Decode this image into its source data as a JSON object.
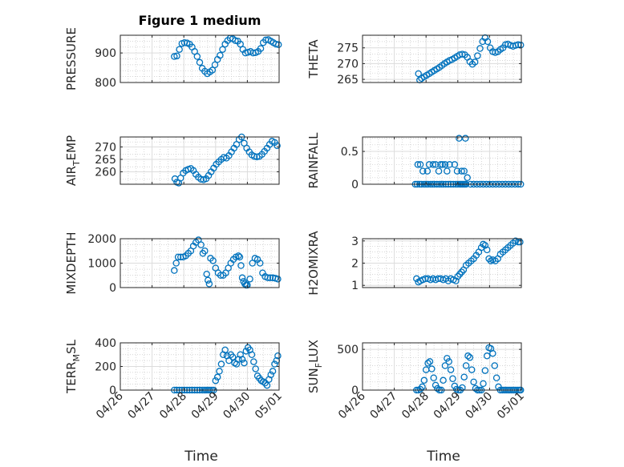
{
  "chart_data": [
    {
      "type": "scatter",
      "title": "Figure 1 medium",
      "ylabel": "PRESSURE",
      "ylim": [
        800,
        960
      ],
      "yticks": [
        800,
        900
      ],
      "yminor": [
        820,
        840,
        860,
        880,
        920,
        940
      ],
      "xlim": [
        "04/26",
        "05/01"
      ],
      "xticks": [
        "04/26",
        "04/27",
        "04/28",
        "04/29",
        "04/30",
        "05/01"
      ],
      "show_xtick_labels": false,
      "grid": "on",
      "marker": "circle",
      "color": "#0072BD",
      "x": [
        1.7,
        1.78,
        1.86,
        1.94,
        2.02,
        2.1,
        2.18,
        2.26,
        2.34,
        2.42,
        2.5,
        2.58,
        2.66,
        2.74,
        2.82,
        2.9,
        2.98,
        3.06,
        3.14,
        3.22,
        3.3,
        3.38,
        3.46,
        3.54,
        3.62,
        3.7,
        3.78,
        3.86,
        3.94,
        4.02,
        4.1,
        4.18,
        4.26,
        4.34,
        4.42,
        4.5,
        4.58,
        4.66,
        4.74,
        4.82,
        4.9,
        4.98
      ],
      "y": [
        888,
        890,
        912,
        932,
        935,
        934,
        930,
        920,
        905,
        888,
        868,
        848,
        838,
        830,
        836,
        842,
        860,
        878,
        892,
        912,
        930,
        942,
        950,
        948,
        942,
        940,
        930,
        912,
        900,
        902,
        905,
        900,
        901,
        905,
        915,
        935,
        944,
        945,
        940,
        935,
        930,
        928
      ]
    },
    {
      "type": "scatter",
      "ylabel": "THETA",
      "ylim": [
        264,
        279
      ],
      "yticks": [
        265,
        270,
        275
      ],
      "yminor": [
        267,
        269,
        271,
        273,
        277
      ],
      "xlim": [
        "04/26",
        "05/01"
      ],
      "xticks": [
        "04/26",
        "04/27",
        "04/28",
        "04/29",
        "04/30",
        "05/01"
      ],
      "show_xtick_labels": false,
      "grid": "on",
      "marker": "circle",
      "color": "#0072BD",
      "x": [
        1.76,
        1.8,
        1.86,
        1.94,
        2.02,
        2.1,
        2.18,
        2.26,
        2.34,
        2.42,
        2.5,
        2.58,
        2.66,
        2.74,
        2.82,
        2.9,
        2.98,
        3.06,
        3.14,
        3.22,
        3.3,
        3.38,
        3.46,
        3.54,
        3.62,
        3.7,
        3.78,
        3.86,
        3.94,
        4.02,
        4.1,
        4.18,
        4.26,
        4.34,
        4.42,
        4.5,
        4.58,
        4.66,
        4.74,
        4.82,
        4.9,
        4.98
      ],
      "y": [
        266.8,
        264.8,
        265.3,
        265.8,
        266.3,
        266.8,
        267.3,
        267.8,
        268.3,
        268.8,
        269.4,
        270.0,
        270.5,
        271.0,
        271.3,
        271.8,
        272.3,
        272.8,
        273.0,
        272.8,
        272.0,
        270.6,
        269.8,
        270.5,
        272.5,
        274.8,
        277.0,
        278.2,
        277.0,
        275.0,
        273.8,
        273.5,
        273.8,
        274.5,
        275.0,
        276.0,
        276.2,
        275.8,
        275.5,
        275.8,
        276.0,
        275.9
      ]
    },
    {
      "type": "scatter",
      "ylabel": "AIR_TEMP",
      "ylabel_parts": {
        "base": "AIR",
        "sub": "T",
        "rest": "EMP"
      },
      "ylim": [
        255,
        274
      ],
      "yticks": [
        260,
        265,
        270
      ],
      "yminor": [
        257,
        262,
        267,
        272
      ],
      "xlim": [
        "04/26",
        "05/01"
      ],
      "xticks": [
        "04/26",
        "04/27",
        "04/28",
        "04/29",
        "04/30",
        "05/01"
      ],
      "show_xtick_labels": false,
      "grid": "on",
      "marker": "circle",
      "color": "#0072BD",
      "x": [
        1.72,
        1.78,
        1.84,
        1.9,
        1.98,
        2.06,
        2.14,
        2.22,
        2.3,
        2.38,
        2.46,
        2.54,
        2.62,
        2.7,
        2.78,
        2.86,
        2.94,
        3.02,
        3.1,
        3.18,
        3.26,
        3.34,
        3.42,
        3.5,
        3.58,
        3.66,
        3.74,
        3.82,
        3.9,
        3.98,
        4.06,
        4.14,
        4.22,
        4.3,
        4.38,
        4.46,
        4.54,
        4.62,
        4.7,
        4.78,
        4.86,
        4.94
      ],
      "y": [
        257.2,
        255.8,
        255.5,
        257.5,
        259.5,
        260.5,
        261.0,
        261.3,
        260.5,
        259.0,
        257.8,
        257.0,
        256.8,
        257.2,
        258.5,
        260.0,
        261.5,
        263.0,
        264.0,
        265.0,
        265.8,
        265.5,
        266.5,
        268.0,
        269.5,
        271.0,
        273.0,
        274.0,
        271.5,
        269.5,
        268.0,
        266.8,
        266.2,
        266.0,
        266.2,
        267.0,
        268.2,
        269.5,
        271.0,
        272.3,
        271.8,
        270.5
      ]
    },
    {
      "type": "scatter",
      "ylabel": "RAINFALL",
      "ylim": [
        0,
        0.72
      ],
      "yticks": [
        0,
        0.5
      ],
      "yminor": [
        0.1,
        0.2,
        0.3,
        0.4,
        0.6,
        0.7
      ],
      "xlim": [
        "04/26",
        "05/01"
      ],
      "xticks": [
        "04/26",
        "04/27",
        "04/28",
        "04/29",
        "04/30",
        "05/01"
      ],
      "show_xtick_labels": false,
      "grid": "on",
      "marker": "circle",
      "color": "#0072BD",
      "x": [
        1.66,
        1.72,
        1.8,
        1.86,
        1.94,
        2.0,
        2.06,
        2.14,
        2.2,
        2.26,
        2.34,
        2.42,
        2.48,
        2.54,
        2.62,
        2.7,
        2.78,
        2.86,
        2.94,
        3.0,
        3.06,
        3.1,
        3.14,
        3.18,
        3.22,
        3.26,
        1.74,
        1.82,
        1.9,
        2.04,
        2.1,
        2.22,
        2.3,
        2.4,
        2.46,
        2.52,
        2.6,
        2.66,
        2.74,
        2.9,
        2.98,
        3.04,
        3.12,
        3.2,
        3.24,
        3.3,
        3.4,
        3.5,
        3.6,
        3.7,
        3.8,
        3.9,
        4.0,
        4.1,
        4.2,
        4.3,
        4.4,
        4.5,
        4.6,
        4.7,
        4.8,
        4.9,
        4.98
      ],
      "y": [
        0,
        0,
        0,
        0,
        0,
        0,
        0,
        0,
        0,
        0,
        0,
        0,
        0,
        0,
        0,
        0,
        0,
        0,
        0,
        0,
        0,
        0,
        0,
        0,
        0,
        0,
        0.3,
        0.3,
        0.2,
        0.2,
        0.3,
        0.3,
        0.3,
        0.2,
        0.3,
        0.3,
        0.3,
        0.2,
        0.3,
        0.3,
        0.2,
        0.7,
        0.2,
        0.2,
        0.7,
        0.1,
        0,
        0,
        0,
        0,
        0,
        0,
        0,
        0,
        0,
        0,
        0,
        0,
        0,
        0,
        0,
        0,
        0
      ]
    },
    {
      "type": "scatter",
      "ylabel": "MIXDEPTH",
      "ylim": [
        0,
        2000
      ],
      "yticks": [
        0,
        1000,
        2000
      ],
      "yminor": [
        250,
        500,
        750,
        1250,
        1500,
        1750
      ],
      "xlim": [
        "04/26",
        "05/01"
      ],
      "xticks": [
        "04/26",
        "04/27",
        "04/28",
        "04/29",
        "04/30",
        "05/01"
      ],
      "show_xtick_labels": false,
      "grid": "on",
      "marker": "circle",
      "color": "#0072BD",
      "x": [
        1.7,
        1.76,
        1.82,
        1.9,
        1.98,
        2.06,
        2.14,
        2.22,
        2.3,
        2.38,
        2.46,
        2.54,
        2.6,
        2.66,
        2.72,
        2.76,
        2.8,
        2.84,
        2.92,
        3.0,
        3.08,
        3.16,
        3.24,
        3.32,
        3.4,
        3.48,
        3.56,
        3.64,
        3.72,
        3.76,
        3.8,
        3.84,
        3.88,
        3.92,
        3.96,
        4.0,
        4.08,
        4.16,
        4.24,
        4.32,
        4.4,
        4.48,
        4.56,
        4.64,
        4.72,
        4.8,
        4.88,
        4.96
      ],
      "y": [
        700,
        1000,
        1250,
        1250,
        1250,
        1300,
        1400,
        1500,
        1700,
        1850,
        1950,
        1750,
        1400,
        1500,
        550,
        300,
        150,
        1200,
        1100,
        800,
        600,
        500,
        500,
        600,
        800,
        1000,
        1150,
        1250,
        1300,
        1250,
        900,
        400,
        250,
        150,
        100,
        100,
        350,
        1000,
        1200,
        1150,
        1000,
        600,
        450,
        400,
        400,
        400,
        380,
        350
      ]
    },
    {
      "type": "scatter",
      "ylabel": "H2OMIXRA",
      "ylim": [
        0.9,
        3.1
      ],
      "yticks": [
        1,
        2,
        3
      ],
      "yminor": [
        1.25,
        1.5,
        1.75,
        2.25,
        2.5,
        2.75
      ],
      "xlim": [
        "04/26",
        "05/01"
      ],
      "xticks": [
        "04/26",
        "04/27",
        "04/28",
        "04/29",
        "04/30",
        "05/01"
      ],
      "show_xtick_labels": false,
      "grid": "on",
      "marker": "circle",
      "color": "#0072BD",
      "x": [
        1.7,
        1.76,
        1.82,
        1.9,
        1.98,
        2.06,
        2.14,
        2.22,
        2.3,
        2.38,
        2.46,
        2.54,
        2.62,
        2.7,
        2.78,
        2.86,
        2.94,
        3.0,
        3.06,
        3.12,
        3.18,
        3.26,
        3.34,
        3.42,
        3.5,
        3.58,
        3.66,
        3.74,
        3.8,
        3.86,
        3.92,
        3.98,
        4.04,
        4.1,
        4.18,
        4.26,
        4.34,
        4.42,
        4.5,
        4.58,
        4.66,
        4.74,
        4.82,
        4.9,
        4.96
      ],
      "y": [
        1.3,
        1.15,
        1.2,
        1.25,
        1.3,
        1.3,
        1.25,
        1.3,
        1.25,
        1.3,
        1.3,
        1.25,
        1.3,
        1.2,
        1.3,
        1.25,
        1.2,
        1.4,
        1.5,
        1.6,
        1.7,
        1.9,
        2.0,
        2.1,
        2.2,
        2.35,
        2.5,
        2.7,
        2.85,
        2.8,
        2.6,
        2.2,
        2.1,
        2.15,
        2.1,
        2.2,
        2.4,
        2.5,
        2.6,
        2.7,
        2.8,
        2.9,
        3.0,
        2.95,
        2.95
      ]
    },
    {
      "type": "scatter",
      "ylabel": "TERR_MSL",
      "ylabel_parts": {
        "base": "TERR",
        "sub": "M",
        "rest": "SL"
      },
      "ylim": [
        0,
        400
      ],
      "yticks": [
        0,
        200,
        400
      ],
      "yminor": [
        50,
        100,
        150,
        250,
        300,
        350
      ],
      "xlim": [
        "04/26",
        "05/01"
      ],
      "xticks": [
        "04/26",
        "04/27",
        "04/28",
        "04/29",
        "04/30",
        "05/01"
      ],
      "xlabel": "Time",
      "show_xtick_labels": true,
      "grid": "on",
      "marker": "circle",
      "color": "#0072BD",
      "x": [
        1.7,
        1.78,
        1.86,
        1.94,
        2.02,
        2.1,
        2.18,
        2.26,
        2.34,
        2.42,
        2.5,
        2.58,
        2.64,
        2.7,
        2.76,
        2.82,
        2.88,
        2.94,
        3.0,
        3.06,
        3.12,
        3.18,
        3.24,
        3.3,
        3.36,
        3.42,
        3.48,
        3.54,
        3.6,
        3.66,
        3.72,
        3.78,
        3.84,
        3.9,
        3.96,
        4.02,
        4.08,
        4.14,
        4.2,
        4.26,
        4.32,
        4.38,
        4.44,
        4.5,
        4.56,
        4.62,
        4.68,
        4.74,
        4.8,
        4.86,
        4.92,
        4.96
      ],
      "y": [
        0,
        0,
        0,
        0,
        0,
        0,
        0,
        0,
        0,
        0,
        0,
        0,
        0,
        0,
        0,
        0,
        0,
        0,
        80,
        110,
        160,
        220,
        300,
        340,
        290,
        250,
        300,
        280,
        230,
        220,
        260,
        300,
        260,
        230,
        330,
        360,
        340,
        300,
        240,
        180,
        120,
        100,
        80,
        70,
        60,
        40,
        90,
        130,
        160,
        220,
        250,
        290
      ]
    },
    {
      "type": "scatter",
      "ylabel": "SUN_FLUX",
      "ylabel_parts": {
        "base": "SUN",
        "sub": "F",
        "rest": "LUX"
      },
      "ylim": [
        0,
        580
      ],
      "yticks": [
        0,
        500
      ],
      "yminor": [
        100,
        200,
        300,
        400
      ],
      "xlim": [
        "04/26",
        "05/01"
      ],
      "xticks": [
        "04/26",
        "04/27",
        "04/28",
        "04/29",
        "04/30",
        "05/01"
      ],
      "xlabel": "Time",
      "show_xtick_labels": true,
      "grid": "on",
      "marker": "circle",
      "color": "#0072BD",
      "x": [
        1.7,
        1.76,
        1.82,
        1.88,
        1.94,
        2.0,
        2.06,
        2.12,
        2.18,
        2.24,
        2.3,
        2.36,
        2.42,
        2.48,
        2.54,
        2.6,
        2.66,
        2.72,
        2.78,
        2.84,
        2.9,
        2.96,
        3.02,
        3.08,
        3.14,
        3.2,
        3.26,
        3.32,
        3.38,
        3.44,
        3.5,
        3.56,
        3.62,
        3.68,
        3.74,
        3.8,
        3.86,
        3.92,
        3.98,
        4.04,
        4.1,
        4.16,
        4.22,
        4.28,
        4.34,
        4.4,
        4.46,
        4.52,
        4.58,
        4.64,
        4.7,
        4.76,
        4.82,
        4.88,
        4.94,
        4.98
      ],
      "y": [
        0,
        0,
        10,
        40,
        120,
        250,
        330,
        350,
        260,
        150,
        60,
        20,
        0,
        0,
        120,
        300,
        390,
        350,
        250,
        140,
        50,
        10,
        0,
        0,
        30,
        160,
        300,
        420,
        400,
        250,
        100,
        20,
        0,
        0,
        0,
        80,
        240,
        420,
        520,
        510,
        450,
        300,
        150,
        40,
        0,
        0,
        0,
        0,
        0,
        0,
        0,
        0,
        0,
        0,
        0,
        0
      ]
    }
  ]
}
